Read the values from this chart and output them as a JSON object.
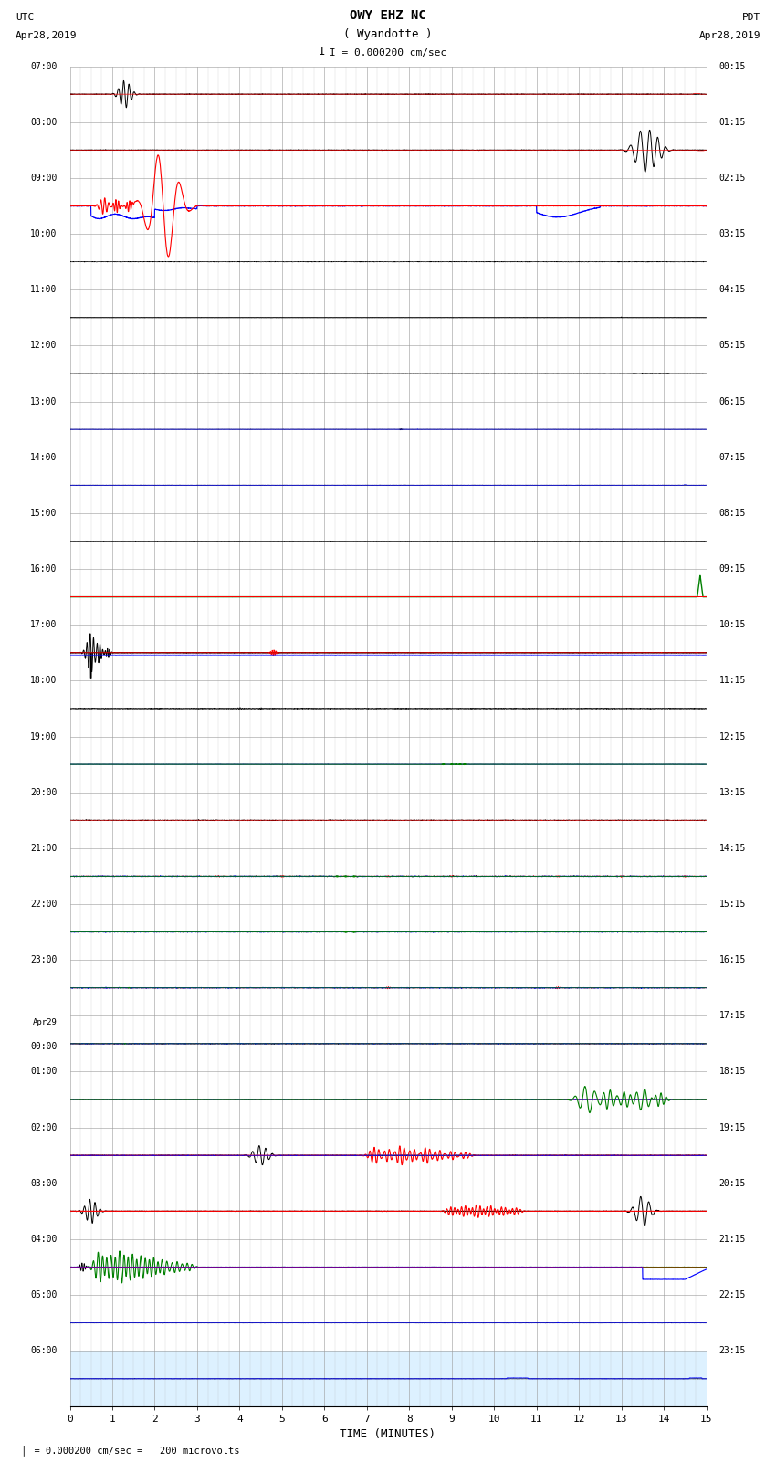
{
  "title_line1": "OWY EHZ NC",
  "title_line2": "( Wyandotte )",
  "scale_text": "I = 0.000200 cm/sec",
  "left_header_line1": "UTC",
  "left_header_line2": "Apr28,2019",
  "right_header_line1": "PDT",
  "right_header_line2": "Apr28,2019",
  "xlabel": "TIME (MINUTES)",
  "footer_text": "= 0.000200 cm/sec =   200 microvolts",
  "x_min": 0,
  "x_max": 15,
  "x_ticks": [
    0,
    1,
    2,
    3,
    4,
    5,
    6,
    7,
    8,
    9,
    10,
    11,
    12,
    13,
    14,
    15
  ],
  "num_rows": 24,
  "utc_labels": [
    "07:00",
    "08:00",
    "09:00",
    "10:00",
    "11:00",
    "12:00",
    "13:00",
    "14:00",
    "15:00",
    "16:00",
    "17:00",
    "18:00",
    "19:00",
    "20:00",
    "21:00",
    "22:00",
    "23:00",
    "Apr29\n00:00",
    "01:00",
    "02:00",
    "03:00",
    "04:00",
    "05:00",
    "06:00"
  ],
  "pdt_labels": [
    "00:15",
    "01:15",
    "02:15",
    "03:15",
    "04:15",
    "05:15",
    "06:15",
    "07:15",
    "08:15",
    "09:15",
    "10:15",
    "11:15",
    "12:15",
    "13:15",
    "14:15",
    "15:15",
    "16:15",
    "17:15",
    "18:15",
    "19:15",
    "20:15",
    "21:15",
    "22:15",
    "23:15"
  ],
  "bg_color": "#ffffff",
  "grid_color": "#999999",
  "fig_width": 8.5,
  "fig_height": 16.13,
  "last_row_bg": "#aaddff"
}
